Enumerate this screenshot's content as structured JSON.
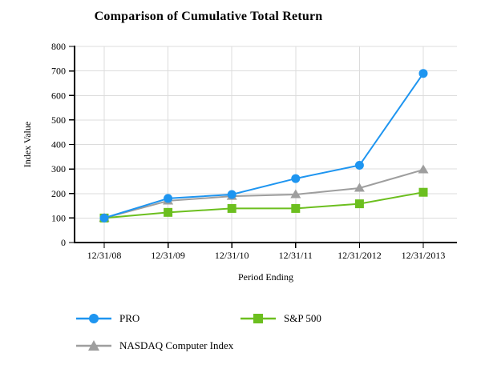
{
  "chart_data": {
    "type": "line",
    "title": "Comparison of Cumulative Total Return",
    "xlabel": "Period Ending",
    "ylabel": "Index Value",
    "categories": [
      "12/31/08",
      "12/31/09",
      "12/31/10",
      "12/31/11",
      "12/31/2012",
      "12/31/2013"
    ],
    "series": [
      {
        "name": "PRO",
        "color": "#1E95F0",
        "marker": "circle",
        "values": [
          100,
          180,
          196,
          261,
          315,
          690
        ]
      },
      {
        "name": "S&P 500",
        "color": "#6CBF1F",
        "marker": "square",
        "values": [
          100,
          123,
          139,
          139,
          158,
          205
        ]
      },
      {
        "name": "NASDAQ Computer Index",
        "color": "#9E9E9E",
        "marker": "triangle",
        "values": [
          100,
          170,
          189,
          196,
          222,
          297
        ]
      }
    ],
    "ylim": [
      0,
      800
    ],
    "ytick_step": 100,
    "grid": true,
    "legend_position": "bottom"
  },
  "styles": {
    "grid_color": "#DCDCDC",
    "axis_color": "#000000",
    "text_color": "#000000"
  }
}
